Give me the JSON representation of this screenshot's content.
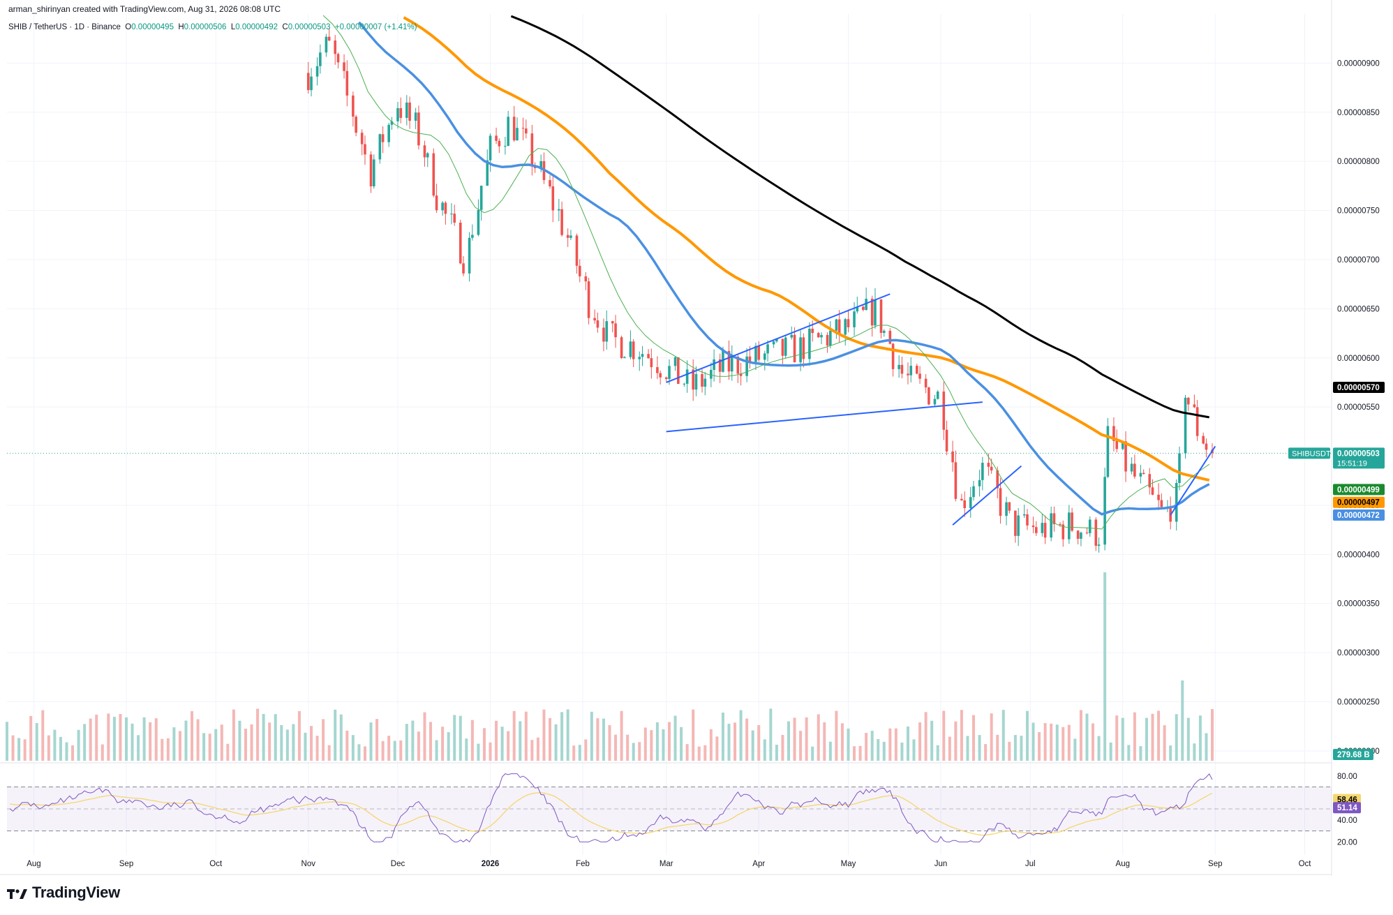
{
  "header": {
    "credit": "arman_shirinyan created with TradingView.com, Aug 31, 2026 08:08 UTC",
    "symbol": "SHIB / TetherUS · 1D · Binance",
    "open_label": "O",
    "open": "0.00000495",
    "high_label": "H",
    "high": "0.00000506",
    "low_label": "L",
    "low": "0.00000492",
    "close_label": "C",
    "close": "0.00000503",
    "change": "+0.00000007 (+1.41%)"
  },
  "footer": {
    "brand": "TradingView"
  },
  "colors": {
    "up": "#26a69a",
    "down": "#ef5350",
    "ma_fast": "#4caf50",
    "ma_mid": "#4a90e2",
    "ma_slow": "#ff9800",
    "ma_long": "#000000",
    "trendline": "#2962ff",
    "rsi": "#7e57c2",
    "rsi_ma": "#f5d76e"
  },
  "chart_data": [
    {
      "type": "candlestick",
      "symbol": "SHIBUSDT",
      "y_axis": {
        "ticks": [
          "0.00000900",
          "0.00000850",
          "0.00000800",
          "0.00000750",
          "0.00000700",
          "0.00000650",
          "0.00000600",
          "0.00000550",
          "0.00000450",
          "0.00000400",
          "0.00000350",
          "0.00000300",
          "0.00000250",
          "0.00000200"
        ],
        "range": [
          1.9e-06,
          9.5e-06
        ]
      },
      "x_axis": {
        "ticks": [
          "Aug",
          "Sep",
          "Oct",
          "Nov",
          "Dec",
          "2026",
          "Feb",
          "Mar",
          "Apr",
          "May",
          "Jun",
          "Jul",
          "Aug",
          "Sep",
          "Oct"
        ],
        "range": [
          "2025-07-23",
          "2026-10-10"
        ]
      },
      "close_path": [
        [
          "2025-11-01",
          8.9
        ],
        [
          "2025-11-08",
          9.2
        ],
        [
          "2025-11-15",
          8.6
        ],
        [
          "2025-11-22",
          7.9
        ],
        [
          "2025-12-01",
          8.6
        ],
        [
          "2025-12-08",
          8.3
        ],
        [
          "2025-12-15",
          7.6
        ],
        [
          "2025-12-24",
          7.0
        ],
        [
          "2026-01-01",
          8.1
        ],
        [
          "2026-01-08",
          8.4
        ],
        [
          "2026-01-16",
          8.0
        ],
        [
          "2026-01-25",
          7.4
        ],
        [
          "2026-02-03",
          6.6
        ],
        [
          "2026-02-10",
          6.2
        ],
        [
          "2026-02-20",
          6.1
        ],
        [
          "2026-03-01",
          5.9
        ],
        [
          "2026-03-10",
          5.7
        ],
        [
          "2026-03-20",
          5.9
        ],
        [
          "2026-04-01",
          6.0
        ],
        [
          "2026-04-15",
          6.1
        ],
        [
          "2026-05-01",
          6.3
        ],
        [
          "2026-05-10",
          6.5
        ],
        [
          "2026-05-20",
          5.8
        ],
        [
          "2026-06-01",
          5.6
        ],
        [
          "2026-06-08",
          4.5
        ],
        [
          "2026-06-15",
          4.9
        ],
        [
          "2026-06-25",
          4.3
        ],
        [
          "2026-07-05",
          4.25
        ],
        [
          "2026-07-15",
          4.3
        ],
        [
          "2026-07-25",
          4.2
        ],
        [
          "2026-07-27",
          5.2
        ],
        [
          "2026-08-05",
          4.8
        ],
        [
          "2026-08-15",
          4.4
        ],
        [
          "2026-08-20",
          4.6
        ],
        [
          "2026-08-22",
          5.7
        ],
        [
          "2026-08-26",
          5.3
        ],
        [
          "2026-08-31",
          5.03
        ]
      ],
      "price_unit_note": "close_path values are in units of 1e-6 USDT",
      "moving_averages": [
        {
          "color_key": "ma_fast",
          "current": "0.00000499"
        },
        {
          "color_key": "ma_slow",
          "current": "0.00000497"
        },
        {
          "color_key": "ma_mid",
          "current": "0.00000472"
        },
        {
          "color_key": "ma_long",
          "current": "0.00000570"
        }
      ],
      "labels": {
        "symbol_tag": "SHIBUSDT",
        "last_price": "0.00000503",
        "countdown": "15:51:19",
        "volume": "279.68 B"
      }
    },
    {
      "type": "line",
      "name": "RSI",
      "y_axis": {
        "ticks": [
          "80.00",
          "40.00",
          "20.00"
        ],
        "bands": [
          70,
          30
        ],
        "mid": 50
      },
      "values": {
        "rsi_ma": "58.46",
        "rsi": "51.14"
      }
    }
  ]
}
